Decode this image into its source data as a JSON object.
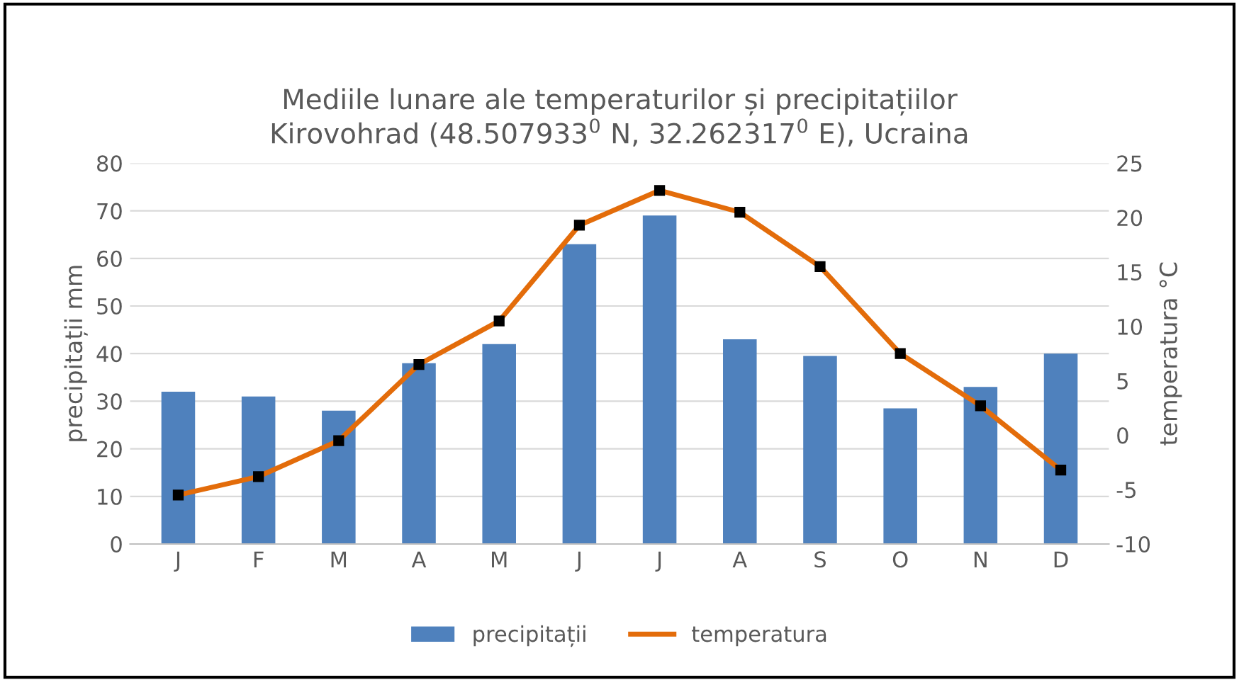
{
  "chart_data": {
    "type": "bar",
    "title": "Mediile lunare ale temperaturilor și precipitațiilor\nKirovohrad (48.507933$^{0}$ N, 32.262317$^{0}$ E), Ucraina",
    "ylabel": "precipitații mm",
    "y2label": "temperatura °C",
    "categories": [
      "J",
      "F",
      "M",
      "A",
      "M",
      "J",
      "J",
      "A",
      "S",
      "O",
      "N",
      "D"
    ],
    "series": [
      {
        "name": "precipitații",
        "color": "#4f81bd",
        "values": [
          32,
          31,
          28,
          38,
          42,
          63,
          69,
          43,
          39.5,
          28.5,
          33,
          40
        ]
      },
      {
        "name": "temperatura",
        "type": "line",
        "axis": "y2",
        "color": "#e36c0a",
        "marker": "square",
        "values": [
          -5.5,
          -3.8,
          -0.5,
          6.5,
          10.5,
          19.3,
          22.5,
          20.5,
          15.5,
          7.5,
          2.7,
          -3.2
        ]
      }
    ],
    "ylim": [
      0,
      80
    ],
    "yticks": [
      0,
      10,
      20,
      30,
      40,
      50,
      60,
      70,
      80
    ],
    "y2lim": [
      -10,
      25
    ],
    "y2ticks": [
      -10,
      -5,
      0,
      5,
      10,
      15,
      20,
      25
    ],
    "grid": "y",
    "legend": "bottom"
  }
}
